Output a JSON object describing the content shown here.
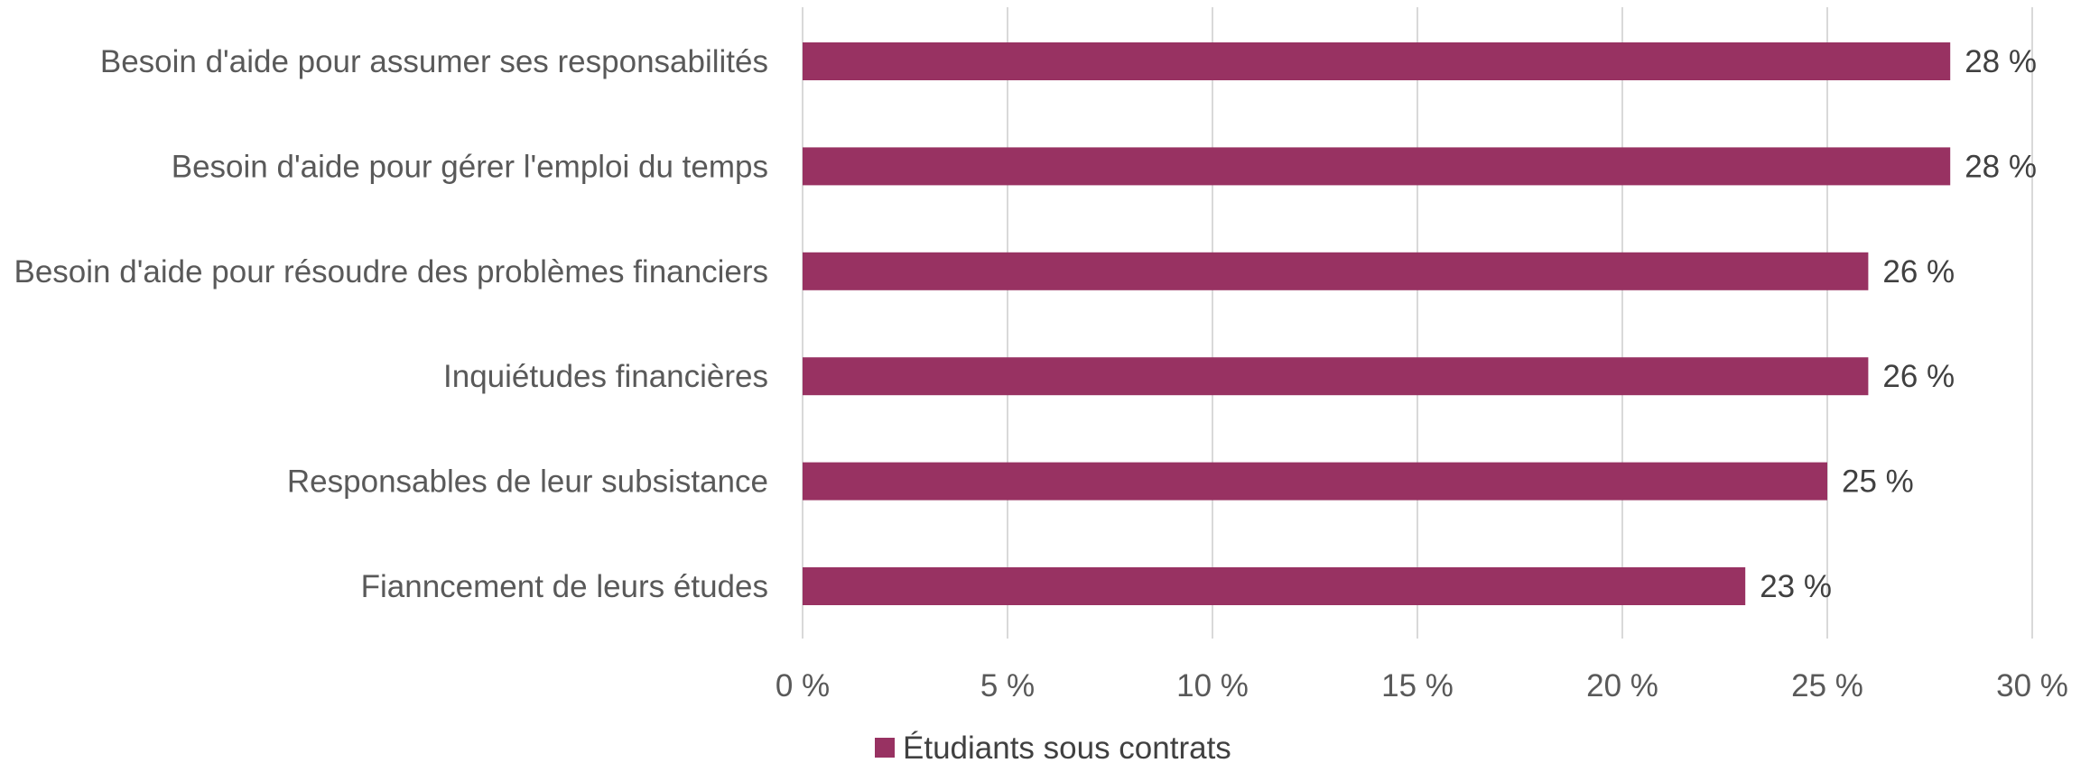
{
  "chart_data": {
    "type": "bar",
    "orientation": "horizontal",
    "categories": [
      "Besoin d'aide pour assumer ses responsabilités",
      "Besoin d'aide pour gérer l'emploi du temps",
      "Besoin d'aide pour résoudre des problèmes financiers",
      "Inquiétudes financières",
      "Responsables de leur subsistance",
      "Fianncement de leurs études"
    ],
    "series": [
      {
        "name": "Étudiants sous contrats",
        "values": [
          28,
          28,
          26,
          26,
          25,
          23
        ],
        "labels": [
          "28 %",
          "28 %",
          "26 %",
          "26 %",
          "25 %",
          "23 %"
        ],
        "color": "#983262"
      }
    ],
    "xlim": [
      0,
      30
    ],
    "xticks": [
      0,
      5,
      10,
      15,
      20,
      25,
      30
    ],
    "xtick_labels": [
      "0 %",
      "5 %",
      "10 %",
      "15 %",
      "20 %",
      "25 %",
      "30 %"
    ],
    "grid": true,
    "legend_position": "bottom",
    "title": "",
    "xlabel": "",
    "ylabel": ""
  },
  "colors": {
    "bar": "#983262",
    "grid": "#d9d9d9",
    "text": "#595959"
  }
}
